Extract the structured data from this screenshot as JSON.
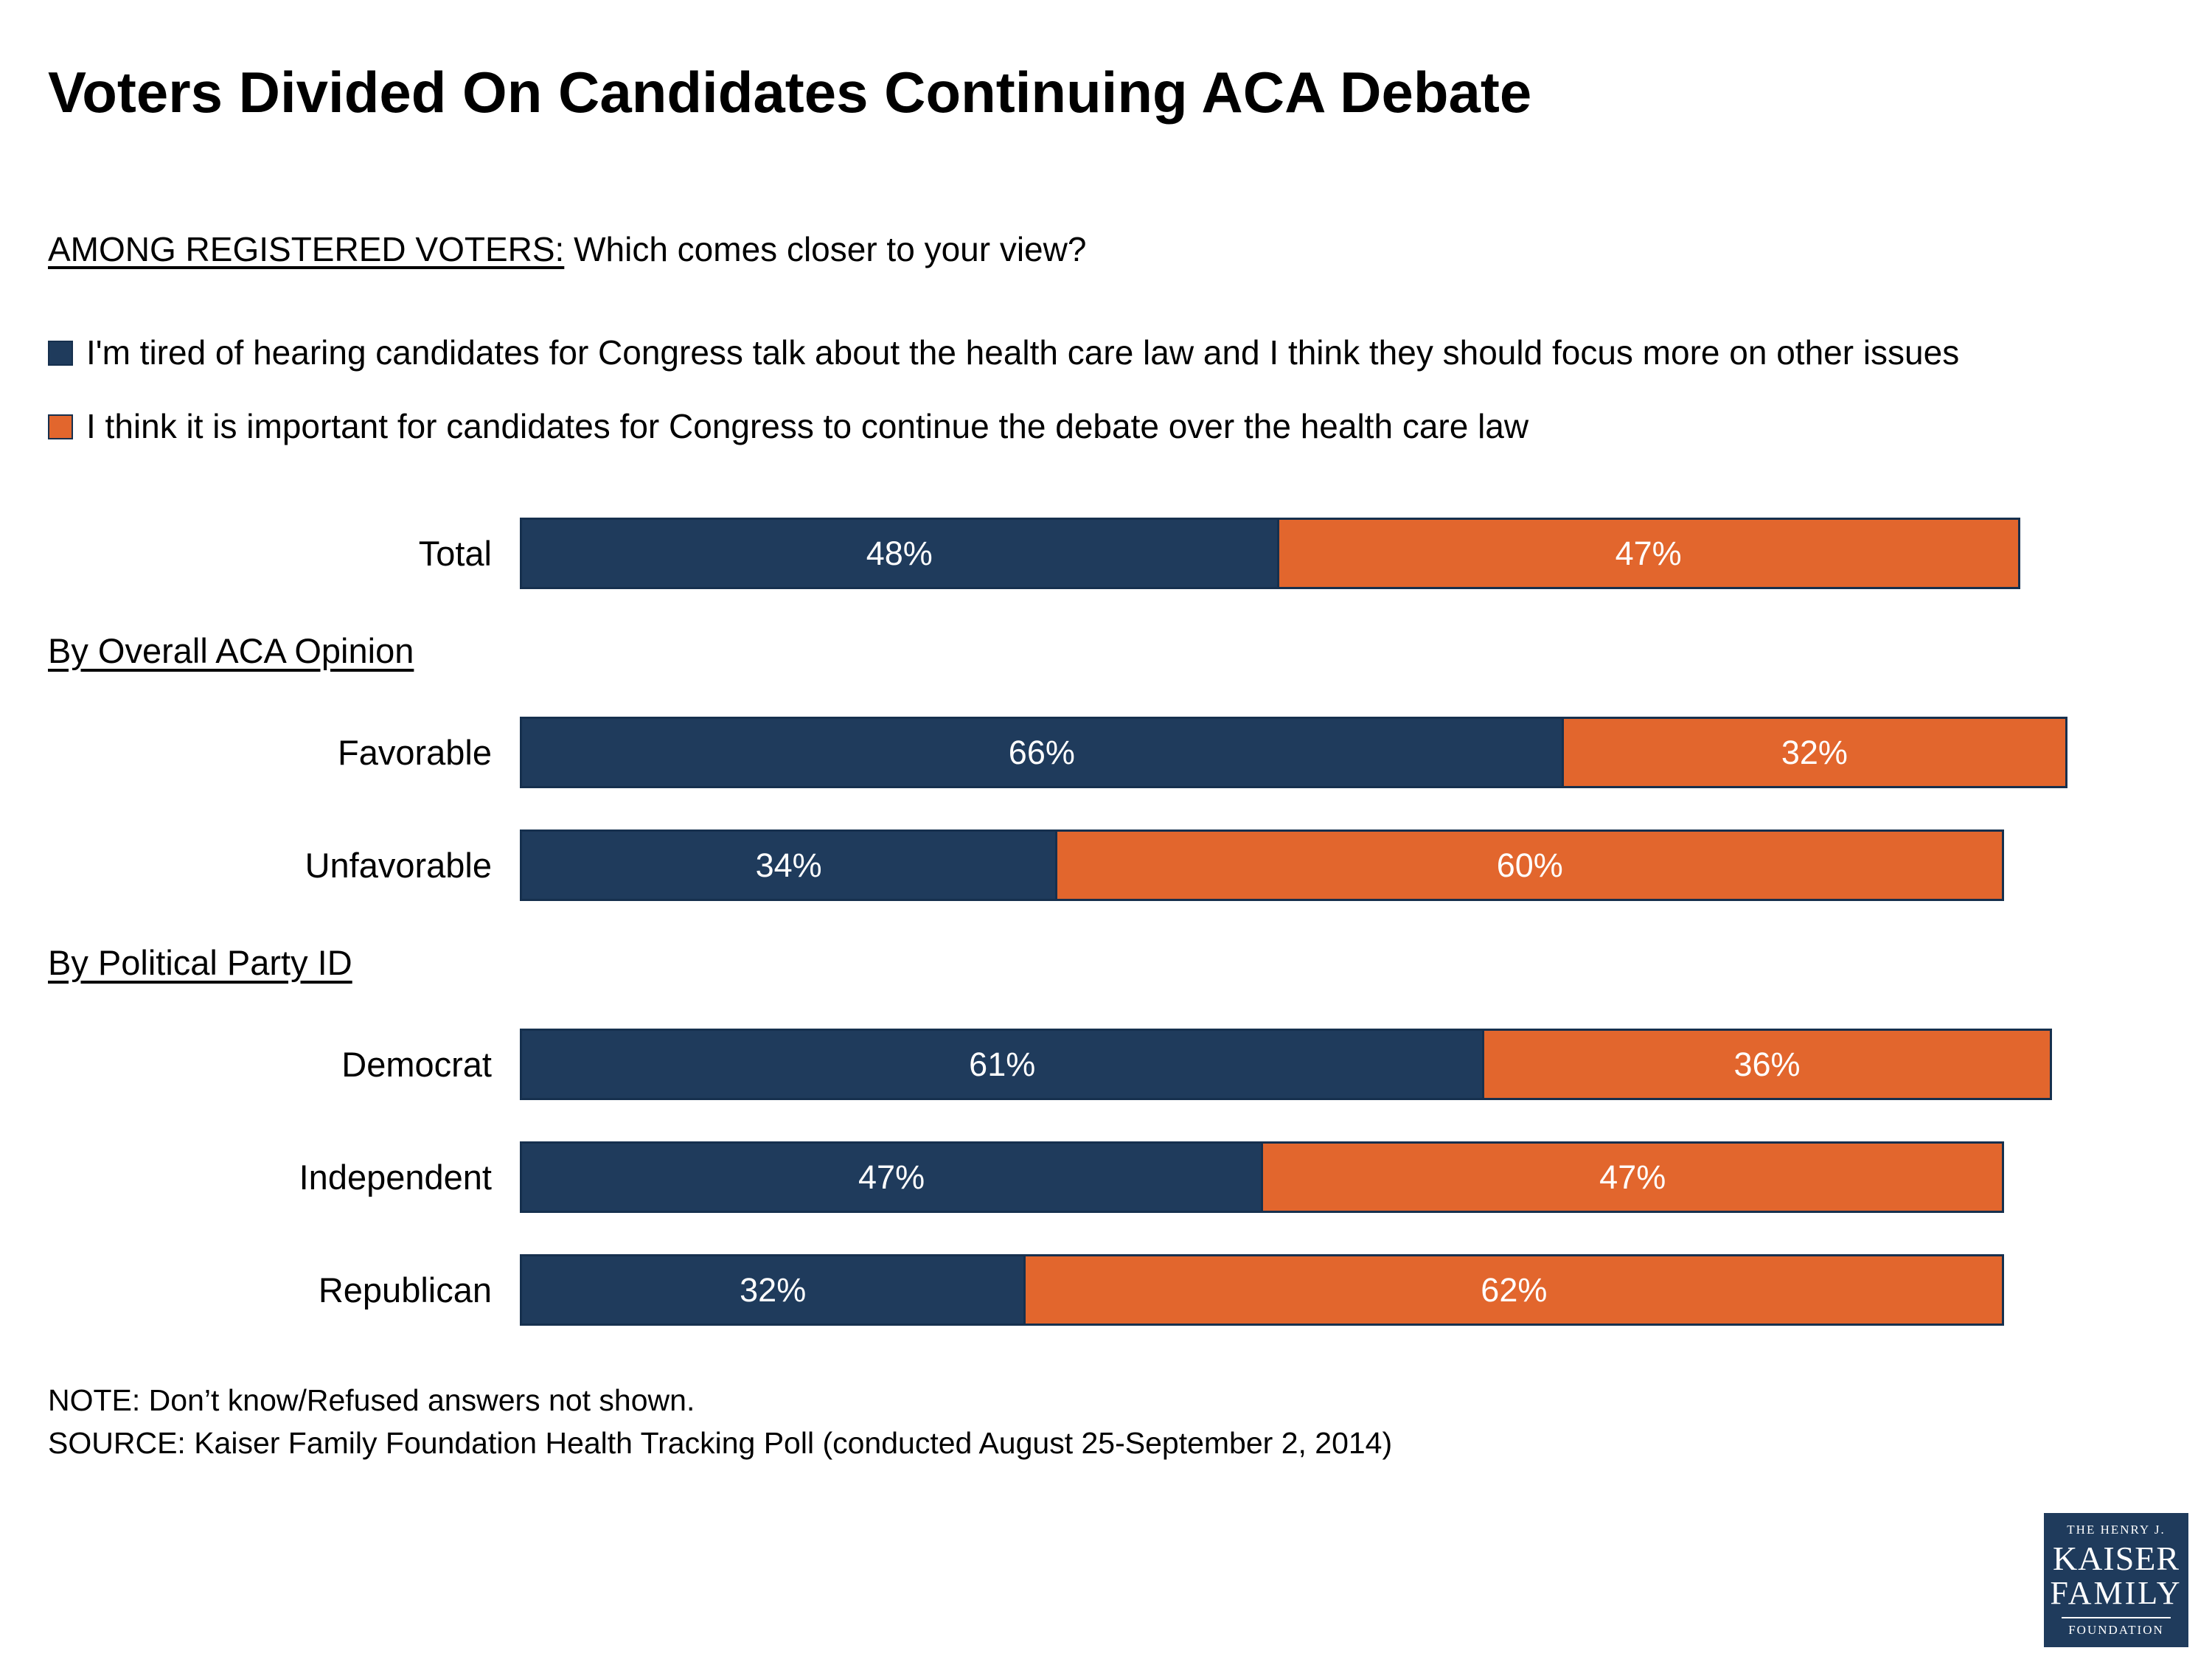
{
  "title": "Voters Divided On Candidates Continuing ACA Debate",
  "question": {
    "prefix": "AMONG REGISTERED VOTERS:",
    "text": " Which comes closer to your view?"
  },
  "colors": {
    "navy": "#1f3b5c",
    "orange": "#e2662d",
    "bar_border": "#16304e"
  },
  "legend": [
    {
      "label": "I'm tired of hearing candidates for Congress talk about the health care law and I think they should focus more on other issues",
      "color": "#1f3b5c"
    },
    {
      "label": "I think it is important for candidates for Congress to continue the debate over the health care law",
      "color": "#e2662d"
    }
  ],
  "chart_data": {
    "type": "bar",
    "orientation": "horizontal",
    "stacked": true,
    "xlim": [
      0,
      100
    ],
    "value_suffix": "%",
    "series": [
      {
        "name": "I'm tired of hearing candidates for Congress talk about the health care law and I think they should focus more on other issues",
        "color": "#1f3b5c"
      },
      {
        "name": "I think it is important for candidates for Congress to continue the debate over the health care law",
        "color": "#e2662d"
      }
    ],
    "groups": [
      {
        "header": null,
        "rows": [
          {
            "label": "Total",
            "values": [
              48,
              47
            ]
          }
        ]
      },
      {
        "header": "By Overall ACA Opinion",
        "rows": [
          {
            "label": "Favorable",
            "values": [
              66,
              32
            ]
          },
          {
            "label": "Unfavorable",
            "values": [
              34,
              60
            ]
          }
        ]
      },
      {
        "header": "By Political Party ID",
        "rows": [
          {
            "label": "Democrat",
            "values": [
              61,
              36
            ]
          },
          {
            "label": "Independent",
            "values": [
              47,
              47
            ]
          },
          {
            "label": "Republican",
            "values": [
              32,
              62
            ]
          }
        ]
      }
    ]
  },
  "notes": {
    "note": "NOTE: Don’t know/Refused answers not shown.",
    "source": "SOURCE: Kaiser Family Foundation Health Tracking Poll (conducted August 25-September 2, 2014)"
  },
  "logo": {
    "line1": "THE HENRY J.",
    "line2": "KAISER",
    "line3": "FAMILY",
    "line4": "FOUNDATION"
  }
}
